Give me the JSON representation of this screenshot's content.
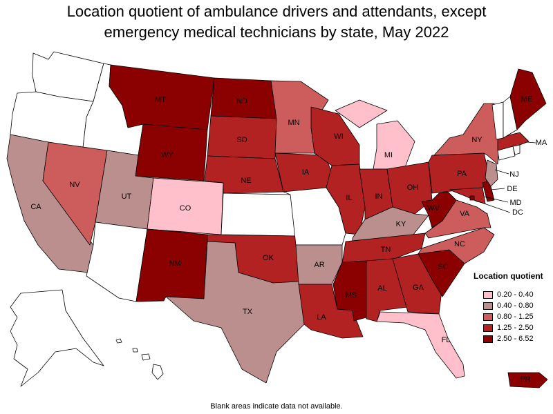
{
  "title_line1": "Location quotient of ambulance drivers and attendants, except",
  "title_line2": "emergency medical technicians by state, May 2022",
  "legend": {
    "title": "Location quotient",
    "items": [
      {
        "label": "0.20 - 0.40",
        "color": "#ffc0cb"
      },
      {
        "label": "0.40 - 0.80",
        "color": "#bc8f8f"
      },
      {
        "label": "0.80 - 1.25",
        "color": "#cd5c5c"
      },
      {
        "label": "1.25 - 2.50",
        "color": "#b22222"
      },
      {
        "label": "2.50 - 6.52",
        "color": "#8b0000"
      }
    ],
    "blank_color": "#ffffff"
  },
  "footnote": "Blank areas indicate data not available.",
  "states": {
    "WA": {
      "class": "blank"
    },
    "OR": {
      "class": "blank"
    },
    "ID": {
      "class": "blank"
    },
    "MT": {
      "class": 4,
      "label": "MT"
    },
    "WY": {
      "class": 4,
      "label": "WY"
    },
    "ND": {
      "class": 4,
      "label": "ND"
    },
    "SD": {
      "class": 3,
      "label": "SD"
    },
    "NE": {
      "class": 3,
      "label": "NE"
    },
    "KS": {
      "class": "blank"
    },
    "MN": {
      "class": 2,
      "label": "MN"
    },
    "IA": {
      "class": 3,
      "label": "IA"
    },
    "MO": {
      "class": "blank"
    },
    "WI": {
      "class": 3,
      "label": "WI"
    },
    "IL": {
      "class": 3,
      "label": "IL"
    },
    "MI": {
      "class": 0,
      "label": "MI"
    },
    "IN": {
      "class": 3,
      "label": "IN"
    },
    "OH": {
      "class": 3,
      "label": "OH"
    },
    "KY": {
      "class": 1,
      "label": "KY"
    },
    "TN": {
      "class": 3,
      "label": "TN"
    },
    "CA": {
      "class": 1,
      "label": "CA"
    },
    "NV": {
      "class": 2,
      "label": "NV"
    },
    "UT": {
      "class": 1,
      "label": "UT"
    },
    "CO": {
      "class": 0,
      "label": "CO"
    },
    "AZ": {
      "class": "blank"
    },
    "NM": {
      "class": 4,
      "label": "NM"
    },
    "TX": {
      "class": 1,
      "label": "TX"
    },
    "OK": {
      "class": 3,
      "label": "OK"
    },
    "AR": {
      "class": 1,
      "label": "AR"
    },
    "LA": {
      "class": 3,
      "label": "LA"
    },
    "MS": {
      "class": 4,
      "label": "MS"
    },
    "AL": {
      "class": 3,
      "label": "AL"
    },
    "GA": {
      "class": 3,
      "label": "GA"
    },
    "FL": {
      "class": 0,
      "label": "FL"
    },
    "SC": {
      "class": 4,
      "label": "SC"
    },
    "NC": {
      "class": 2,
      "label": "NC"
    },
    "VA": {
      "class": 2,
      "label": "VA"
    },
    "WV": {
      "class": 4,
      "label": "WV"
    },
    "PA": {
      "class": 3,
      "label": "PA"
    },
    "NY": {
      "class": 2,
      "label": "NY"
    },
    "NJ": {
      "class": 1,
      "label": "NJ"
    },
    "DE": {
      "class": 4,
      "label": "DE"
    },
    "MD": {
      "class": 3,
      "label": "MD"
    },
    "DC": {
      "class": 4,
      "label": "DC"
    },
    "MA": {
      "class": 3,
      "label": "MA"
    },
    "CT": {
      "class": "blank"
    },
    "RI": {
      "class": "blank"
    },
    "VT": {
      "class": "blank"
    },
    "NH": {
      "class": "blank"
    },
    "ME": {
      "class": 4,
      "label": "ME"
    },
    "AK": {
      "class": "blank"
    },
    "HI": {
      "class": "blank"
    },
    "PR": {
      "class": 4,
      "label": "PR"
    }
  }
}
